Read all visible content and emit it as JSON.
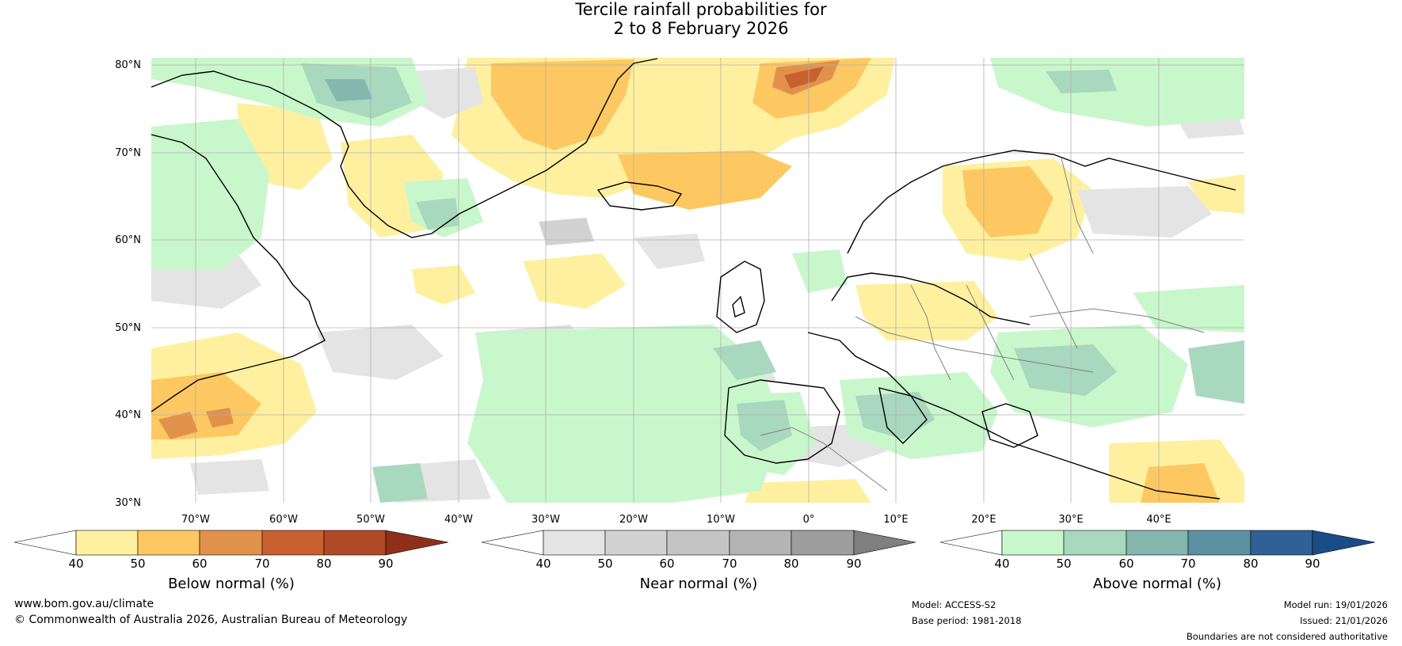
{
  "title": {
    "line1": "Tercile rainfall probabilities for",
    "line2": "2 to 8 February 2026"
  },
  "map": {
    "lat_labels": [
      "80°N",
      "70°N",
      "60°N",
      "50°N",
      "40°N",
      "30°N"
    ],
    "lon_labels": [
      "70°W",
      "60°W",
      "50°W",
      "40°W",
      "30°W",
      "20°W",
      "10°W",
      "0°",
      "10°E",
      "20°E",
      "30°E",
      "40°E"
    ],
    "colors": {
      "below": [
        "#fff0a0",
        "#fdc862",
        "#e0924a",
        "#c9602f",
        "#b14a26",
        "#8e3019"
      ],
      "near": [
        "#e4e4e4",
        "#d2d2d2",
        "#c4c4c4",
        "#b4b4b4",
        "#9e9e9e",
        "#808080"
      ],
      "above": [
        "#c8f7cb",
        "#a8d8bd",
        "#84b7ad",
        "#5b91a0",
        "#2f6096",
        "#1a4c85"
      ],
      "coast": "#000000",
      "border": "#808080",
      "grid": "#b0b0b0"
    }
  },
  "colorbars": [
    {
      "title": "Below normal (%)",
      "ticks": [
        "40",
        "50",
        "60",
        "70",
        "80",
        "90"
      ]
    },
    {
      "title": "Near normal (%)",
      "ticks": [
        "40",
        "50",
        "60",
        "70",
        "80",
        "90"
      ]
    },
    {
      "title": "Above normal (%)",
      "ticks": [
        "40",
        "50",
        "60",
        "70",
        "80",
        "90"
      ]
    }
  ],
  "footer": {
    "url": "www.bom.gov.au/climate",
    "copyright": "© Commonwealth of Australia 2026, Australian Bureau of Meteorology",
    "model": "Model: ACCESS-S2",
    "base_period": "Base period: 1981-2018",
    "model_run": "Model run: 19/01/2026",
    "issued": "Issued: 21/01/2026",
    "disclaimer": "Boundaries are not considered authoritative"
  }
}
